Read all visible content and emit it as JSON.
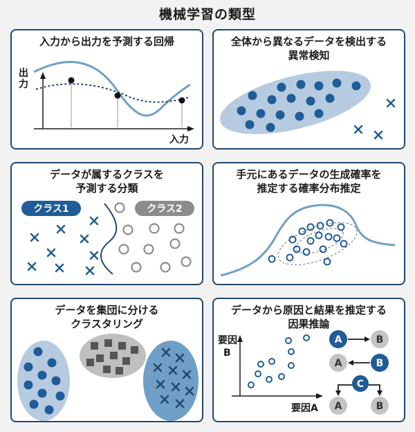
{
  "title": "機械学習の類型",
  "panels": {
    "regression": {
      "title": "入力から出力を予測する回帰",
      "y_label_1": "出",
      "y_label_2": "力",
      "x_label": "入力"
    },
    "anomaly": {
      "title": "全体から異なるデータを検出する\n異常検知"
    },
    "classification": {
      "title": "データが属するクラスを\n予測する分類",
      "class1": "クラス1",
      "class2": "クラス2"
    },
    "density": {
      "title": "手元にあるデータの生成確率を\n推定する確率分布推定"
    },
    "clustering": {
      "title": "データを集団に分ける\nクラスタリング"
    },
    "causal": {
      "title": "データから原因と結果を推定する\n因果推論",
      "y_label_1": "要因",
      "y_label_2": "B",
      "x_label": "要因A",
      "node_a": "A",
      "node_b": "B",
      "node_c": "C"
    }
  },
  "colors": {
    "navy": "#22476d",
    "blue": "#1f5c98",
    "light_blue": "#b7cbe0",
    "gray": "#8c8c8c",
    "curve": "#6f9fc6"
  }
}
